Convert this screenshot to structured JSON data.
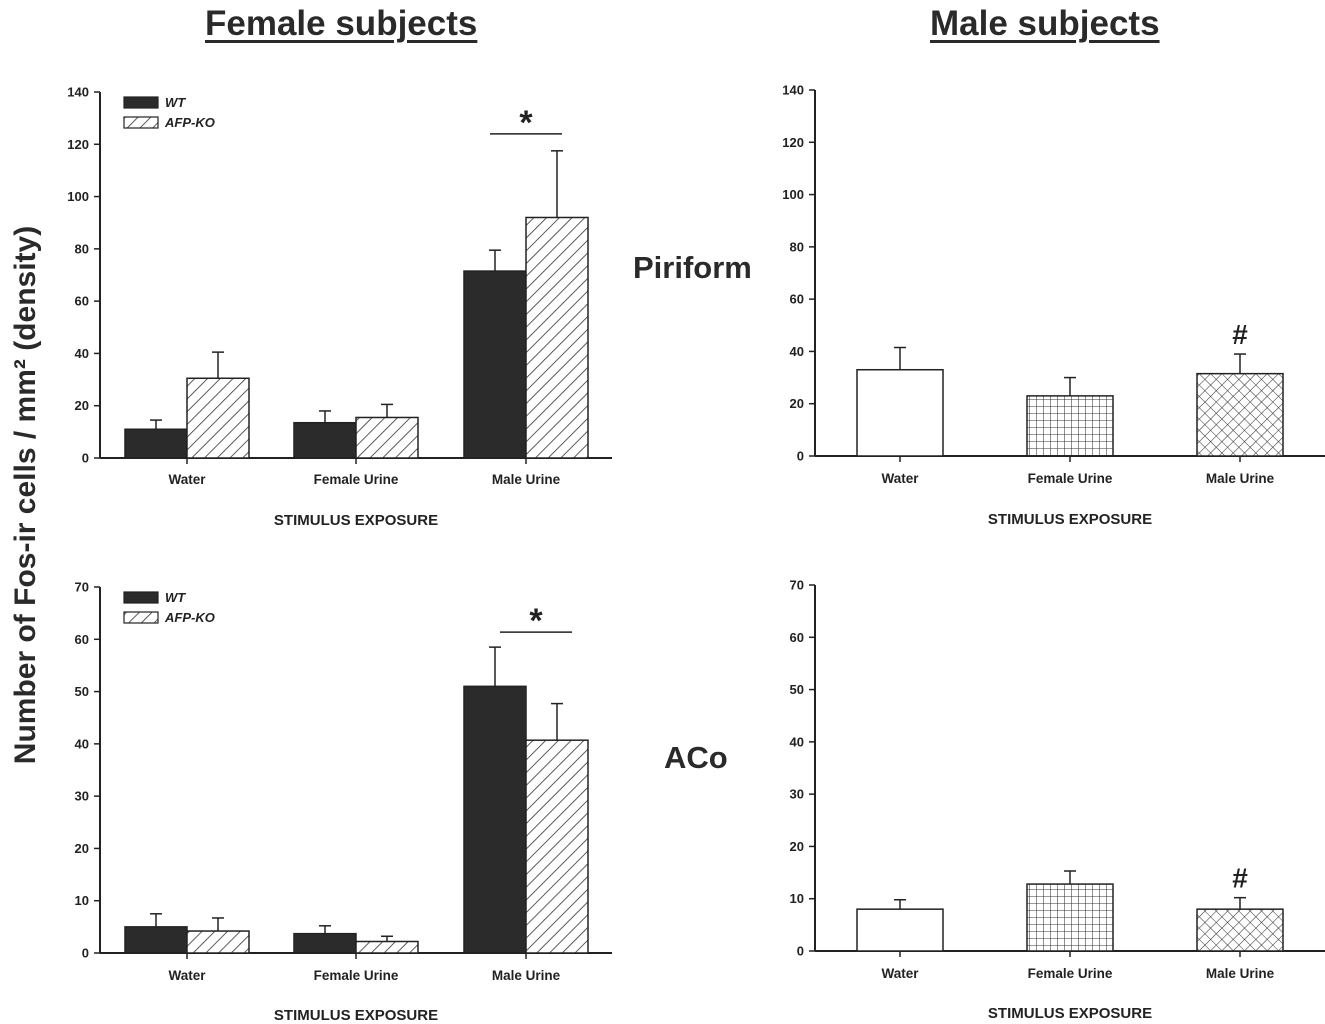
{
  "titles": {
    "female": "Female subjects",
    "male": "Male subjects"
  },
  "regions": {
    "piriform": "Piriform",
    "aco": "ACo"
  },
  "y_axis_label": "Number of Fos-ir cells / mm²  (density)",
  "colors": {
    "wt_bar": "#2b2b2b",
    "axis": "#222222",
    "hatch": "#333333"
  },
  "chart_data": [
    {
      "type": "bar",
      "panel": "female-piriform",
      "categories": [
        "Water",
        "Female Urine",
        "Male Urine"
      ],
      "xlabel": "STIMULUS EXPOSURE",
      "ylim": [
        0,
        140
      ],
      "yticks": [
        0,
        20,
        40,
        60,
        80,
        100,
        120,
        140
      ],
      "legend": [
        "WT",
        "AFP-KO"
      ],
      "legend_position": "top-left",
      "series": [
        {
          "name": "WT",
          "pattern": "solid",
          "values": [
            11,
            13.5,
            71.5
          ],
          "errors": [
            3.5,
            4.5,
            8
          ]
        },
        {
          "name": "AFP-KO",
          "pattern": "diagonal",
          "values": [
            30.5,
            15.5,
            92
          ],
          "errors": [
            10,
            5,
            25.5
          ]
        }
      ],
      "annotations": [
        {
          "text": "*",
          "category": "Male Urine"
        }
      ]
    },
    {
      "type": "bar",
      "panel": "male-piriform",
      "categories": [
        "Water",
        "Female Urine",
        "Male Urine"
      ],
      "xlabel": "STIMULUS EXPOSURE",
      "ylim": [
        0,
        140
      ],
      "yticks": [
        0,
        20,
        40,
        60,
        80,
        100,
        120,
        140
      ],
      "series": [
        {
          "values": [
            33,
            23,
            31.5
          ],
          "errors": [
            8.5,
            7,
            7.5
          ],
          "patterns": [
            "open",
            "grid",
            "crosshatch"
          ]
        }
      ],
      "annotations": [
        {
          "text": "#",
          "category": "Male Urine"
        }
      ]
    },
    {
      "type": "bar",
      "panel": "female-aco",
      "categories": [
        "Water",
        "Female Urine",
        "Male Urine"
      ],
      "xlabel": "STIMULUS EXPOSURE",
      "ylim": [
        0,
        70
      ],
      "yticks": [
        0,
        10,
        20,
        30,
        40,
        50,
        60,
        70
      ],
      "legend": [
        "WT",
        "AFP-KO"
      ],
      "legend_position": "top-left",
      "series": [
        {
          "name": "WT",
          "pattern": "solid",
          "values": [
            5,
            3.7,
            51
          ],
          "errors": [
            2.5,
            1.5,
            7.5
          ]
        },
        {
          "name": "AFP-KO",
          "pattern": "diagonal",
          "values": [
            4.2,
            2.2,
            40.7
          ],
          "errors": [
            2.5,
            1,
            7
          ]
        }
      ],
      "annotations": [
        {
          "text": "*",
          "category": "Male Urine"
        }
      ]
    },
    {
      "type": "bar",
      "panel": "male-aco",
      "categories": [
        "Water",
        "Female Urine",
        "Male Urine"
      ],
      "xlabel": "STIMULUS EXPOSURE",
      "ylim": [
        0,
        70
      ],
      "yticks": [
        0,
        10,
        20,
        30,
        40,
        50,
        60,
        70
      ],
      "series": [
        {
          "values": [
            8,
            12.8,
            8
          ],
          "errors": [
            1.8,
            2.5,
            2.2
          ],
          "patterns": [
            "open",
            "grid",
            "crosshatch"
          ]
        }
      ],
      "annotations": [
        {
          "text": "#",
          "category": "Male Urine"
        }
      ]
    }
  ]
}
